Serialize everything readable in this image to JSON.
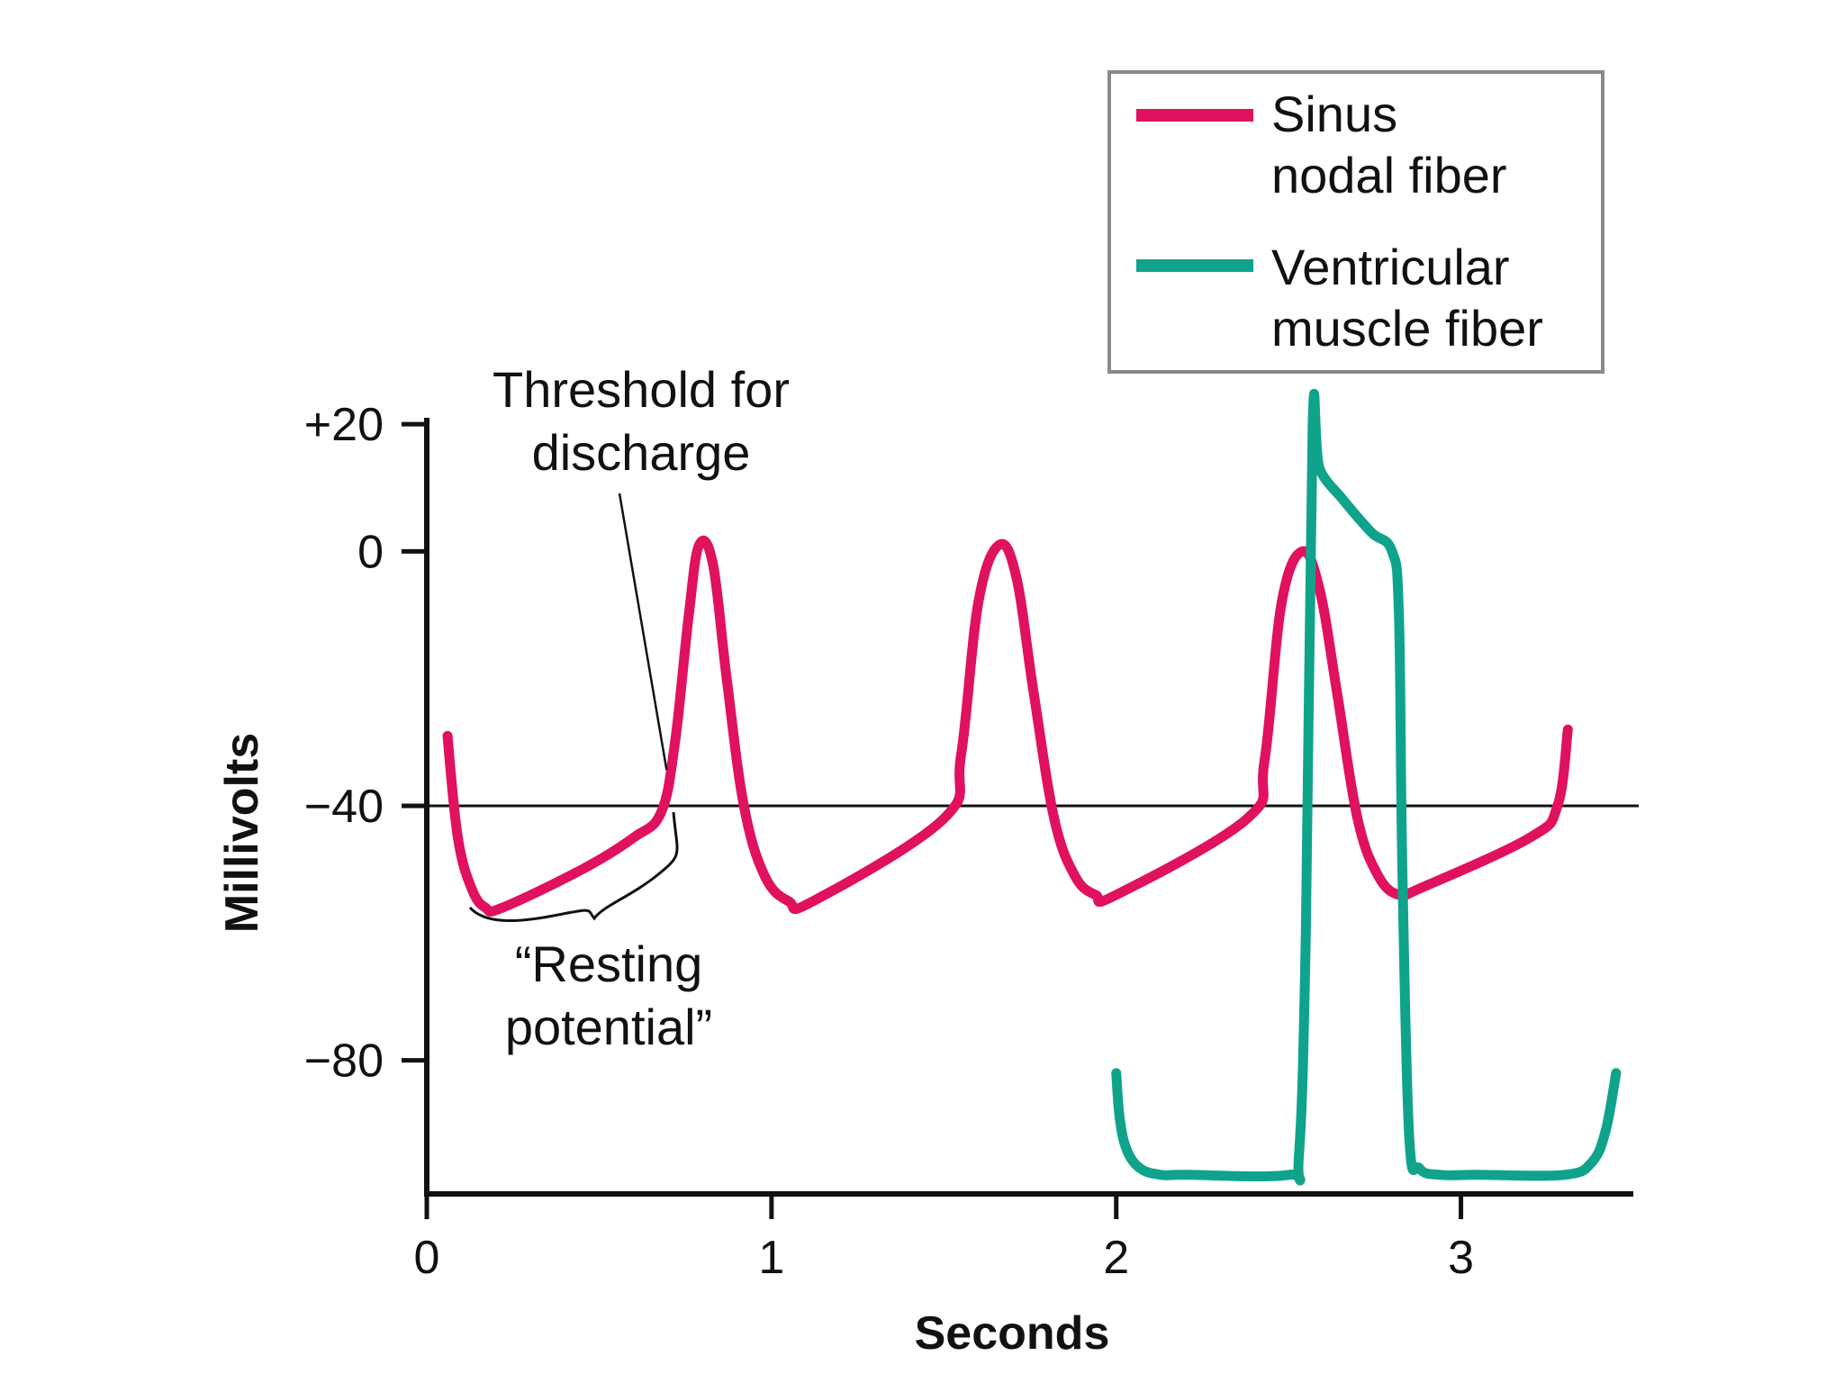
{
  "chart_data": {
    "type": "line",
    "xlabel": "Seconds",
    "ylabel": "Millivolts",
    "xlim": [
      0,
      3.5
    ],
    "ylim": [
      -101,
      21
    ],
    "x_ticks": [
      "0",
      "1",
      "2",
      "3"
    ],
    "x_tick_values": [
      0,
      1,
      2,
      3
    ],
    "y_ticks": [
      "+20",
      "0",
      "−40",
      "−80"
    ],
    "y_tick_values": [
      20,
      0,
      -40,
      -80
    ],
    "grid": false,
    "reference_line": {
      "y": -40
    },
    "legend": {
      "placement": "top-right",
      "entries": [
        {
          "lines": [
            "Sinus",
            "nodal fiber"
          ],
          "color": "#E0115F"
        },
        {
          "lines": [
            "Ventricular",
            "muscle fiber"
          ],
          "color": "#0FA38C"
        }
      ]
    },
    "annotations": {
      "threshold": {
        "lines": [
          "Threshold for",
          "discharge"
        ],
        "points_to": [
          0.68,
          -40
        ]
      },
      "resting": {
        "lines": [
          "“Resting",
          "potential”"
        ],
        "spans_x": [
          0.13,
          0.72
        ]
      }
    },
    "series": [
      {
        "name": "Sinus nodal fiber",
        "color": "#E0115F",
        "x": [
          0.06,
          0.09,
          0.13,
          0.17,
          0.22,
          0.45,
          0.6,
          0.68,
          0.72,
          0.76,
          0.79,
          0.83,
          0.87,
          0.92,
          0.98,
          1.05,
          1.12,
          1.5,
          1.55,
          1.6,
          1.66,
          1.71,
          1.76,
          1.82,
          1.88,
          1.94,
          2.0,
          2.38,
          2.43,
          2.48,
          2.54,
          2.59,
          2.64,
          2.7,
          2.76,
          2.82,
          2.88,
          3.2,
          3.28,
          3.31
        ],
        "y": [
          -29,
          -45,
          -53,
          -56,
          -56,
          -50,
          -45,
          -41,
          -30,
          -10,
          1,
          -2,
          -20,
          -40,
          -51,
          -55,
          -55,
          -42,
          -32,
          -8,
          1,
          -4,
          -22,
          -42,
          -51,
          -54,
          -54,
          -42,
          -33,
          -8,
          0,
          -6,
          -22,
          -42,
          -51,
          -54,
          -53,
          -45,
          -40,
          -28
        ]
      },
      {
        "name": "Ventricular muscle fiber",
        "color": "#0FA38C",
        "x": [
          2.0,
          2.01,
          2.03,
          2.07,
          2.13,
          2.2,
          2.5,
          2.53,
          2.55,
          2.57,
          2.59,
          2.66,
          2.74,
          2.8,
          2.82,
          2.83,
          2.85,
          2.88,
          2.94,
          3.05,
          3.3,
          3.38,
          3.42,
          3.45
        ],
        "y": [
          -82,
          -89,
          -94,
          -97,
          -98,
          -98,
          -98,
          -95,
          -60,
          20,
          13,
          8,
          3,
          0,
          -10,
          -50,
          -92,
          -97,
          -98,
          -98,
          -98,
          -96,
          -91,
          -82
        ]
      }
    ]
  }
}
